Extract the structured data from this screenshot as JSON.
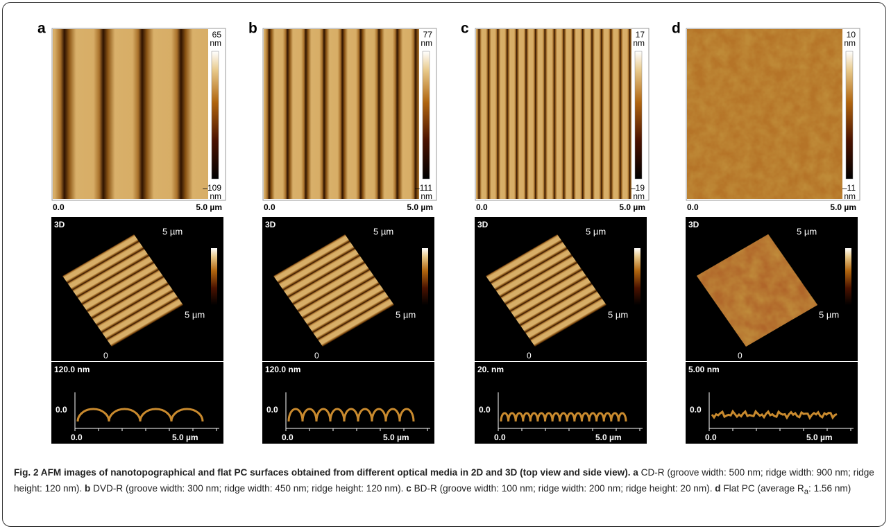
{
  "panels": [
    {
      "label": "a",
      "bar_max": "65",
      "bar_max_unit": "nm",
      "bar_min": "–109",
      "bar_min_unit": "nm",
      "x_start": "0.0",
      "x_end": "5.0 µm",
      "view3d": "3D",
      "axis3d_y": "5 µm",
      "axis3d_x": "5 µm",
      "axis3d_origin": "0",
      "height": "120.0 nm",
      "side_zero": "0.0",
      "side_x_start": "0.0",
      "side_x_end": "5.0 µm"
    },
    {
      "label": "b",
      "bar_max": "77",
      "bar_max_unit": "nm",
      "bar_min": "–111",
      "bar_min_unit": "nm",
      "x_start": "0.0",
      "x_end": "5.0 µm",
      "view3d": "3D",
      "axis3d_y": "5 µm",
      "axis3d_x": "5 µm",
      "axis3d_origin": "0",
      "height": "120.0 nm",
      "side_zero": "0.0",
      "side_x_start": "0.0",
      "side_x_end": "5.0 µm"
    },
    {
      "label": "c",
      "bar_max": "17",
      "bar_max_unit": "nm",
      "bar_min": "–19",
      "bar_min_unit": "nm",
      "x_start": "0.0",
      "x_end": "5.0 µm",
      "view3d": "3D",
      "axis3d_y": "5 µm",
      "axis3d_x": "5 µm",
      "axis3d_origin": "0",
      "height": "20. nm",
      "side_zero": "0.0",
      "side_x_start": "0.0",
      "side_x_end": "5.0 µm"
    },
    {
      "label": "d",
      "bar_max": "10",
      "bar_max_unit": "nm",
      "bar_min": "–11",
      "bar_min_unit": "nm",
      "x_start": "0.0",
      "x_end": "5.0 µm",
      "view3d": "3D",
      "axis3d_y": "5 µm",
      "axis3d_x": "5 µm",
      "axis3d_origin": "0",
      "height": "5.00 nm",
      "side_zero": "0.0",
      "side_x_start": "0.0",
      "side_x_end": "5.0 µm"
    }
  ],
  "caption": {
    "title": "Fig. 2 AFM images of nanotopographical and flat PC surfaces obtained from different optical media in 2D and 3D (top view and side view).",
    "parts": [
      {
        "label": "a",
        "text": "CD-R (groove width: 500 nm; ridge width: 900 nm; ridge height: 120 nm)."
      },
      {
        "label": "b",
        "text": "DVD-R (groove width: 300 nm; ridge width: 450 nm; ridge height: 120 nm)."
      },
      {
        "label": "c",
        "text": "BD-R (groove width: 100 nm; ridge width: 200 nm; ridge height: 20 nm)."
      },
      {
        "label": "d",
        "text": "Flat PC (average R",
        "sub": "a",
        "text_after": ": 1.56 nm)"
      }
    ]
  }
}
